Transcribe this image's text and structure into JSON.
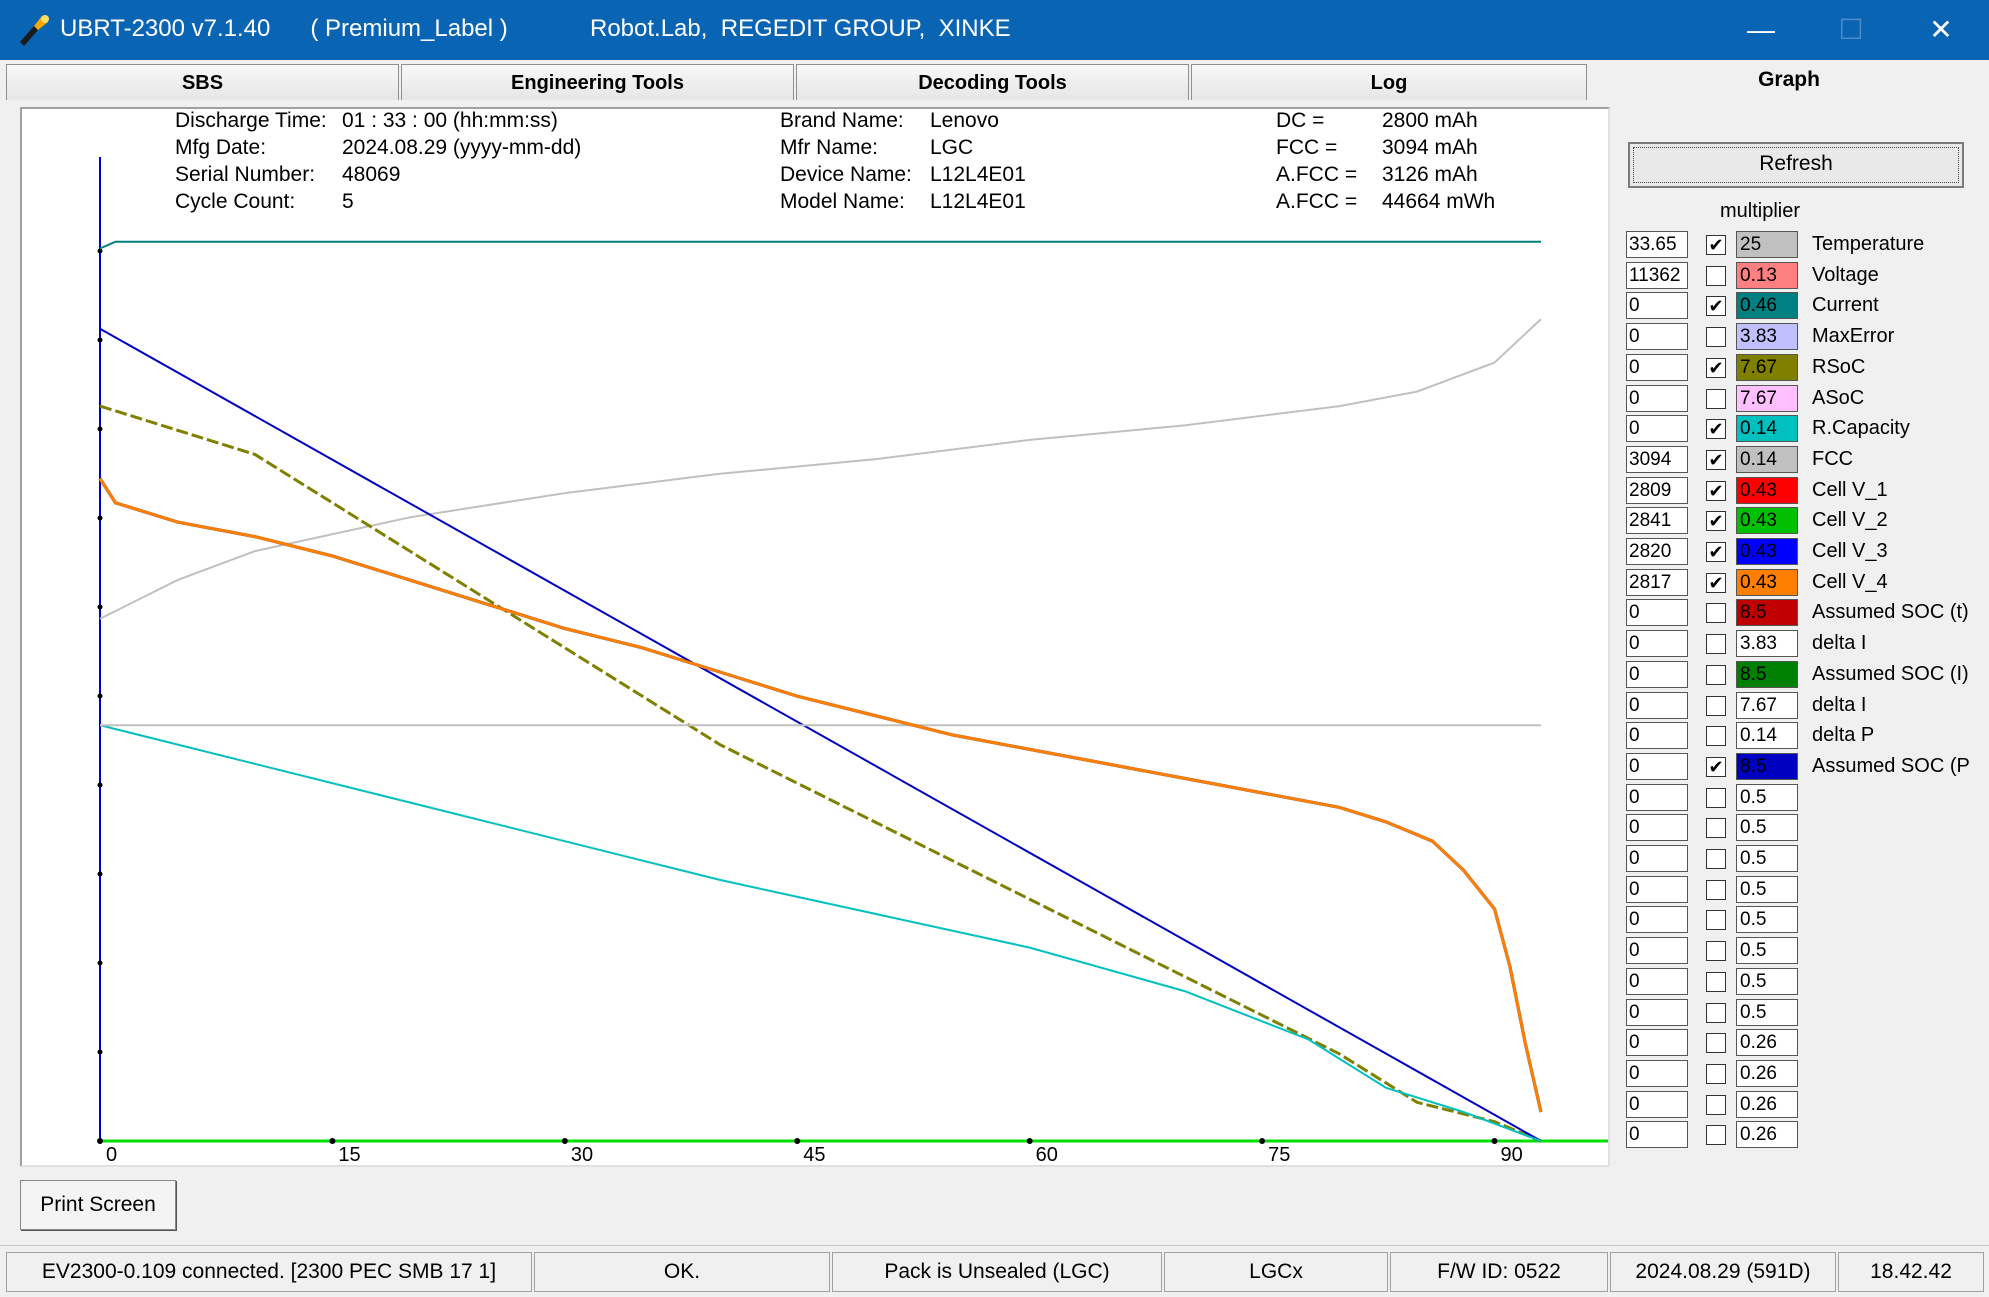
{
  "window": {
    "title": "UBRT-2300 v7.1.40      ( Premium_Label )",
    "subtitle": "Robot.Lab,  REGEDIT GROUP,  XINKE",
    "minimize": "—",
    "maximize": "☐",
    "close": "✕"
  },
  "tabs": [
    {
      "label": "SBS"
    },
    {
      "label": "Engineering Tools"
    },
    {
      "label": "Decoding Tools"
    },
    {
      "label": "Log"
    },
    {
      "label": "Graph"
    }
  ],
  "info": {
    "discharge_time_label": "Discharge Time:",
    "discharge_time_value": "01 : 33 : 00 (hh:mm:ss)",
    "mfg_date_label": "Mfg Date:",
    "mfg_date_value": "2024.08.29 (yyyy-mm-dd)",
    "serial_label": "Serial Number:",
    "serial_value": "48069",
    "cycle_label": "Cycle Count:",
    "cycle_value": "5",
    "brand_label": "Brand Name:",
    "brand_value": "Lenovo",
    "mfr_label": "Mfr Name:",
    "mfr_value": "LGC",
    "device_label": "Device Name:",
    "device_value": "L12L4E01",
    "model_label": "Model Name:",
    "model_value": "L12L4E01",
    "dc_label": "DC =",
    "dc_value": "2800 mAh",
    "fcc_label": "FCC =",
    "fcc_value": "3094 mAh",
    "afcc_label": "A.FCC =",
    "afcc_value": "3126 mAh",
    "afcc2_label": "A.FCC =",
    "afcc2_value": "44664 mWh"
  },
  "buttons": {
    "refresh": "Refresh",
    "print_screen": "Print Screen"
  },
  "multiplier_header": "multiplier",
  "legend": [
    {
      "value": "33.65",
      "checked": true,
      "mult": "25",
      "color": "#c0c0c0",
      "name": "Temperature"
    },
    {
      "value": "11362",
      "checked": false,
      "mult": "0.13",
      "color": "#ff8080",
      "name": "Voltage"
    },
    {
      "value": "0",
      "checked": true,
      "mult": "0.46",
      "color": "#008080",
      "name": "Current"
    },
    {
      "value": "0",
      "checked": false,
      "mult": "3.83",
      "color": "#c0c0ff",
      "name": "MaxError"
    },
    {
      "value": "0",
      "checked": true,
      "mult": "7.67",
      "color": "#808000",
      "name": "RSoC"
    },
    {
      "value": "0",
      "checked": false,
      "mult": "7.67",
      "color": "#ffc0ff",
      "name": "ASoC"
    },
    {
      "value": "0",
      "checked": true,
      "mult": "0.14",
      "color": "#00c0c0",
      "name": "R.Capacity"
    },
    {
      "value": "3094",
      "checked": true,
      "mult": "0.14",
      "color": "#c0c0c0",
      "name": "FCC"
    },
    {
      "value": "2809",
      "checked": true,
      "mult": "0.43",
      "color": "#ff0000",
      "name": "Cell V_1"
    },
    {
      "value": "2841",
      "checked": true,
      "mult": "0.43",
      "color": "#00c000",
      "name": "Cell V_2"
    },
    {
      "value": "2820",
      "checked": true,
      "mult": "0.43",
      "color": "#0000ff",
      "name": "Cell V_3"
    },
    {
      "value": "2817",
      "checked": true,
      "mult": "0.43",
      "color": "#ff8000",
      "name": "Cell V_4"
    },
    {
      "value": "0",
      "checked": false,
      "mult": "8.5",
      "color": "#c00000",
      "name": "Assumed SOC (t)"
    },
    {
      "value": "0",
      "checked": false,
      "mult": "3.83",
      "color": "#ffffff",
      "name": "delta I"
    },
    {
      "value": "0",
      "checked": false,
      "mult": "8.5",
      "color": "#008000",
      "name": "Assumed SOC (I)"
    },
    {
      "value": "0",
      "checked": false,
      "mult": "7.67",
      "color": "#ffffff",
      "name": "delta I"
    },
    {
      "value": "0",
      "checked": false,
      "mult": "0.14",
      "color": "#ffffff",
      "name": "delta P"
    },
    {
      "value": "0",
      "checked": true,
      "mult": "8.5",
      "color": "#0000c0",
      "name": "Assumed SOC (P"
    },
    {
      "value": "0",
      "checked": false,
      "mult": "0.5",
      "color": "#ffffff",
      "name": ""
    },
    {
      "value": "0",
      "checked": false,
      "mult": "0.5",
      "color": "#ffffff",
      "name": ""
    },
    {
      "value": "0",
      "checked": false,
      "mult": "0.5",
      "color": "#ffffff",
      "name": ""
    },
    {
      "value": "0",
      "checked": false,
      "mult": "0.5",
      "color": "#ffffff",
      "name": ""
    },
    {
      "value": "0",
      "checked": false,
      "mult": "0.5",
      "color": "#ffffff",
      "name": ""
    },
    {
      "value": "0",
      "checked": false,
      "mult": "0.5",
      "color": "#ffffff",
      "name": ""
    },
    {
      "value": "0",
      "checked": false,
      "mult": "0.5",
      "color": "#ffffff",
      "name": ""
    },
    {
      "value": "0",
      "checked": false,
      "mult": "0.5",
      "color": "#ffffff",
      "name": ""
    },
    {
      "value": "0",
      "checked": false,
      "mult": "0.26",
      "color": "#ffffff",
      "name": ""
    },
    {
      "value": "0",
      "checked": false,
      "mult": "0.26",
      "color": "#ffffff",
      "name": ""
    },
    {
      "value": "0",
      "checked": false,
      "mult": "0.26",
      "color": "#ffffff",
      "name": ""
    },
    {
      "value": "0",
      "checked": false,
      "mult": "0.26",
      "color": "#ffffff",
      "name": ""
    }
  ],
  "status": [
    "EV2300-0.109 connected. [2300  PEC  SMB  17 1]",
    "OK.",
    "Pack is Unsealed  (LGC)",
    "LGCx",
    "F/W ID: 0522",
    "2024.08.29  (591D)",
    "18.42.42"
  ],
  "chart_data": {
    "type": "line",
    "x_ticks": [
      "0",
      "15",
      "30",
      "45",
      "60",
      "75",
      "90"
    ],
    "x_range": [
      0,
      93
    ],
    "y_range": [
      0,
      100
    ],
    "grid": false,
    "series": [
      {
        "name": "Current",
        "color": "#008080",
        "x": [
          0,
          1,
          5,
          30,
          60,
          90,
          93
        ],
        "y": [
          92.3,
          93,
          93,
          93,
          93,
          93,
          93
        ]
      },
      {
        "name": "Temperature",
        "color": "#c0c0c0",
        "x": [
          0,
          5,
          10,
          20,
          30,
          40,
          50,
          60,
          70,
          80,
          85,
          90,
          93
        ],
        "y": [
          54,
          58,
          61,
          64.5,
          67,
          69,
          70.5,
          72.5,
          74,
          76,
          77.5,
          80.5,
          85
        ]
      },
      {
        "name": "RSoC",
        "color": "#808000",
        "x": [
          0,
          10,
          20,
          30,
          40,
          50,
          60,
          70,
          80,
          85,
          90,
          93
        ],
        "y": [
          76,
          71,
          61,
          51,
          41,
          33,
          25,
          17,
          9,
          4,
          2,
          0
        ]
      },
      {
        "name": "Assumed SOC (P",
        "color": "#0000c0",
        "x": [
          0,
          93
        ],
        "y": [
          84,
          0
        ]
      },
      {
        "name": "R.Capacity",
        "color": "#00c0c0",
        "x": [
          0,
          20,
          40,
          60,
          70,
          78,
          83,
          88,
          93
        ],
        "y": [
          43,
          35,
          27,
          20,
          15.5,
          10.5,
          5.5,
          3,
          0
        ]
      },
      {
        "name": "FCC",
        "color": "#c0c0c0",
        "x": [
          0,
          93
        ],
        "y": [
          43,
          43
        ]
      },
      {
        "name": "Cell V_1",
        "color": "#ff0000",
        "x": [
          0,
          1,
          3,
          5,
          10,
          15,
          20,
          25,
          30,
          35,
          40,
          45,
          50,
          55,
          60,
          65,
          70,
          75,
          80,
          83,
          86,
          88,
          90,
          91,
          92,
          93
        ],
        "y": [
          68.5,
          66,
          65,
          64,
          62.5,
          60.5,
          58,
          55.5,
          53,
          51,
          48.5,
          46,
          44,
          42,
          40.5,
          39,
          37.5,
          36,
          34.5,
          33,
          31,
          28,
          24,
          18,
          10,
          3
        ]
      },
      {
        "name": "Cell V_2",
        "color": "#00c000",
        "x": [
          0,
          1,
          3,
          5,
          10,
          15,
          20,
          25,
          30,
          35,
          40,
          45,
          50,
          55,
          60,
          65,
          70,
          75,
          80,
          83,
          86,
          88,
          90,
          91,
          92,
          93
        ],
        "y": [
          68.5,
          66,
          65,
          64,
          62.5,
          60.5,
          58,
          55.5,
          53,
          51,
          48.5,
          46,
          44,
          42,
          40.5,
          39,
          37.5,
          36,
          34.5,
          33,
          31,
          28,
          24,
          18,
          10,
          3
        ]
      },
      {
        "name": "Cell V_3",
        "color": "#0000ff",
        "x": [
          0,
          1,
          3,
          5,
          10,
          15,
          20,
          25,
          30,
          35,
          40,
          45,
          50,
          55,
          60,
          65,
          70,
          75,
          80,
          83,
          86,
          88,
          90,
          91,
          92,
          93
        ],
        "y": [
          68.5,
          66,
          65,
          64,
          62.5,
          60.5,
          58,
          55.5,
          53,
          51,
          48.5,
          46,
          44,
          42,
          40.5,
          39,
          37.5,
          36,
          34.5,
          33,
          31,
          28,
          24,
          18,
          10,
          3
        ]
      },
      {
        "name": "Cell V_4",
        "color": "#ff8000",
        "x": [
          0,
          1,
          3,
          5,
          10,
          15,
          20,
          25,
          30,
          35,
          40,
          45,
          50,
          55,
          60,
          65,
          70,
          75,
          80,
          83,
          86,
          88,
          90,
          91,
          92,
          93
        ],
        "y": [
          68.5,
          66,
          65,
          64,
          62.5,
          60.5,
          58,
          55.5,
          53,
          51,
          48.5,
          46,
          44,
          42,
          40.5,
          39,
          37.5,
          36,
          34.5,
          33,
          31,
          28,
          24,
          18,
          10,
          3
        ]
      }
    ]
  }
}
